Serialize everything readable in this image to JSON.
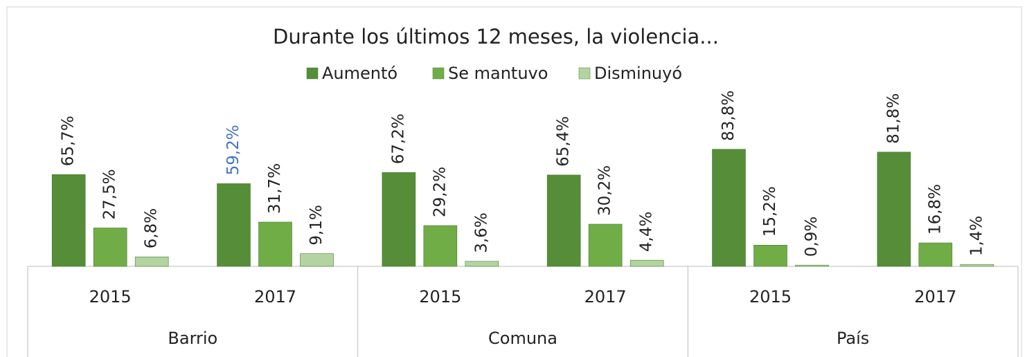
{
  "chart_data": {
    "type": "bar",
    "title": "Durante los últimos 12 meses, la violencia...",
    "categories": [
      "2015",
      "2017",
      "2015",
      "2017",
      "2015",
      "2017"
    ],
    "groups": [
      "Barrio",
      "Comuna",
      "País"
    ],
    "series": [
      {
        "name": "Aumentó",
        "color": "#568d38",
        "values": [
          65.7,
          59.2,
          67.2,
          65.4,
          83.8,
          81.8
        ],
        "value_labels": [
          "65,7%",
          "59,2%",
          "67,2%",
          "65,4%",
          "83,8%",
          "81,8%"
        ]
      },
      {
        "name": "Se mantuvo",
        "color": "#70ad47",
        "values": [
          27.5,
          31.7,
          29.2,
          30.2,
          15.2,
          16.8
        ],
        "value_labels": [
          "27,5%",
          "31,7%",
          "29,2%",
          "30,2%",
          "15,2%",
          "16,8%"
        ]
      },
      {
        "name": "Disminuyó",
        "color": "#b3d4a0",
        "values": [
          6.8,
          9.1,
          3.6,
          4.4,
          0.9,
          1.4
        ],
        "value_labels": [
          "6,8%",
          "9,1%",
          "3,6%",
          "4,4%",
          "0,9%",
          "1,4%"
        ]
      }
    ],
    "highlight": {
      "series": 0,
      "index": 1,
      "color": "#4472c4"
    },
    "ylim": [
      0,
      100
    ]
  }
}
